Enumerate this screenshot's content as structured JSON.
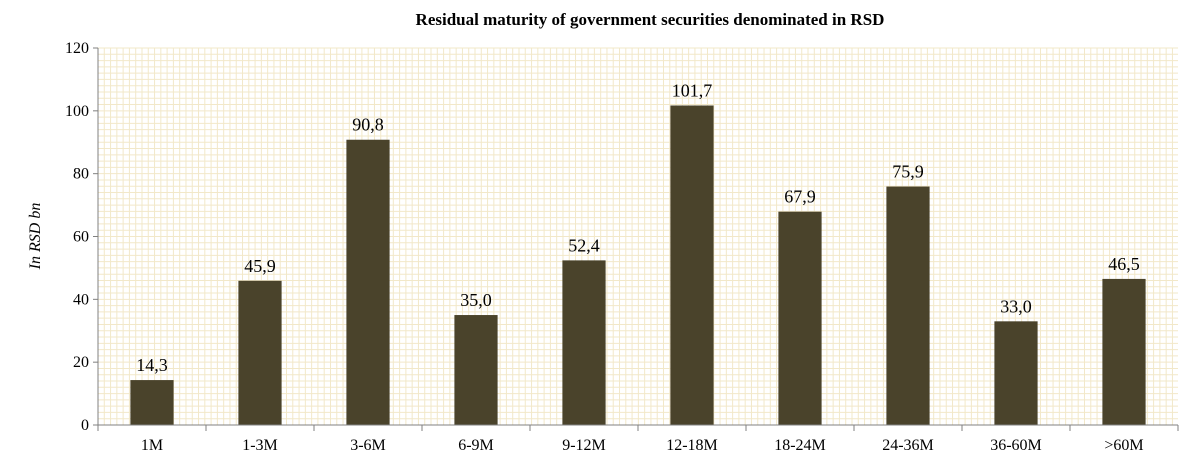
{
  "chart_data": {
    "type": "bar",
    "title": "Residual maturity of government securities denominated in RSD",
    "ylabel": "In RSD bn",
    "xlabel": "",
    "categories": [
      "1M",
      "1-3M",
      "3-6M",
      "6-9M",
      "9-12M",
      "12-18M",
      "18-24M",
      "24-36M",
      "36-60M",
      ">60M"
    ],
    "values": [
      14.3,
      45.9,
      90.8,
      35.0,
      52.4,
      101.7,
      67.9,
      75.9,
      33.0,
      46.5
    ],
    "data_labels": [
      "14,3",
      "45,9",
      "90,8",
      "35,0",
      "52,4",
      "101,7",
      "67,9",
      "75,9",
      "33,0",
      "46,5"
    ],
    "ylim": [
      0,
      120
    ],
    "yticks": [
      0,
      20,
      40,
      60,
      80,
      100,
      120
    ],
    "grid": true,
    "colors": {
      "bar": "#4a432b",
      "grid": "#f2e8c9",
      "axis": "#808080"
    }
  }
}
